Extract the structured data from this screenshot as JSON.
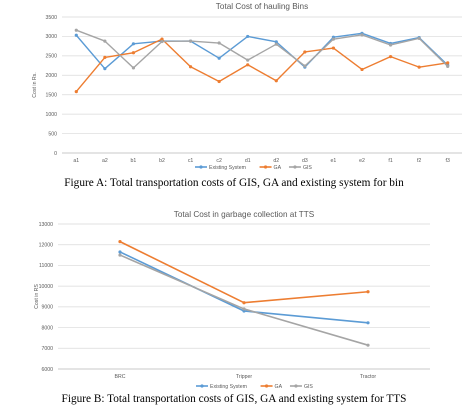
{
  "captions": {
    "figure_a": "Figure A: Total transportation costs of GIS, GA and existing system for bin",
    "figure_b": "Figure B: Total transportation costs of GIS, GA and existing system for TTS"
  },
  "colors": {
    "existing_system": "#5b9bd5",
    "ga": "#ed7d31",
    "gis": "#a5a5a5",
    "grid": "#d9d9d9",
    "axis_text": "#595959"
  },
  "chart_data": [
    {
      "type": "line",
      "title": "Total Cost of hauling Bins",
      "xlabel": "",
      "ylabel": "Cost in Rs.",
      "categories": [
        "a1",
        "a2",
        "b1",
        "b2",
        "c1",
        "c2",
        "d1",
        "d2",
        "d3",
        "e1",
        "e2",
        "f1",
        "f2",
        "f3"
      ],
      "ylim": [
        0,
        3500
      ],
      "yticks": [
        0,
        500,
        1000,
        1500,
        2000,
        2500,
        3000,
        3500
      ],
      "grid": true,
      "legend_position": "bottom",
      "series": [
        {
          "name": "Existing System",
          "color": "#5b9bd5",
          "values": [
            3030,
            2170,
            2810,
            2880,
            2880,
            2440,
            3000,
            2860,
            2210,
            2980,
            3080,
            2820,
            2970,
            2260
          ]
        },
        {
          "name": "GA",
          "color": "#ed7d31",
          "values": [
            1580,
            2460,
            2580,
            2930,
            2220,
            1840,
            2270,
            1860,
            2600,
            2700,
            2150,
            2480,
            2210,
            2320
          ]
        },
        {
          "name": "GIS",
          "color": "#a5a5a5",
          "values": [
            3160,
            2880,
            2190,
            2870,
            2880,
            2830,
            2390,
            2800,
            2240,
            2930,
            3040,
            2780,
            2950,
            2230
          ]
        }
      ]
    },
    {
      "type": "line",
      "title": "Total Cost in garbage collection at TTS",
      "xlabel": "",
      "ylabel": "Cost in RS",
      "categories": [
        "BRC",
        "Tripper",
        "Tractor"
      ],
      "ylim": [
        6000,
        13000
      ],
      "yticks": [
        6000,
        7000,
        8000,
        9000,
        10000,
        11000,
        12000,
        13000
      ],
      "grid": true,
      "legend_position": "bottom",
      "series": [
        {
          "name": "Existing System",
          "color": "#5b9bd5",
          "values": [
            11650,
            8800,
            8230
          ]
        },
        {
          "name": "GA",
          "color": "#ed7d31",
          "values": [
            12150,
            9200,
            9730
          ]
        },
        {
          "name": "GIS",
          "color": "#a5a5a5",
          "values": [
            11500,
            8900,
            7150
          ]
        }
      ]
    }
  ]
}
